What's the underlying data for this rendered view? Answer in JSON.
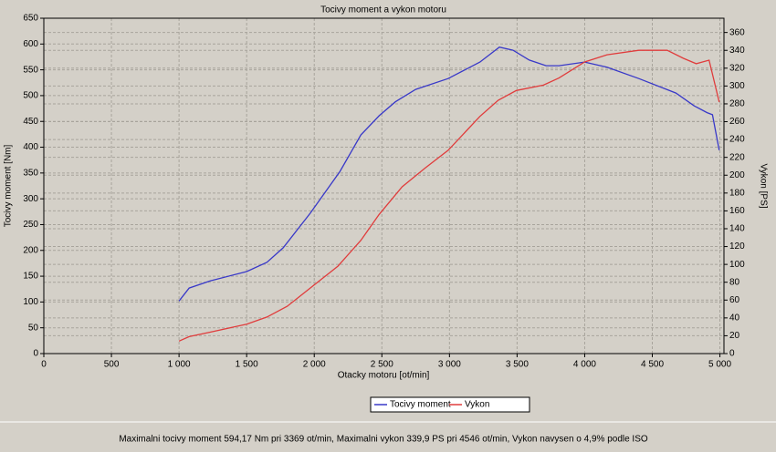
{
  "chart_data": {
    "type": "line",
    "title": "Tocivy moment a vykon motoru",
    "x_label": "Otacky motoru [ot/min]",
    "y_label": "Tocivy moment [Nm]",
    "y2_label": "Vykon [PS]",
    "footer": "Maximalni tocivy moment 594,17 Nm pri 3369 ot/min,  Maximalni vykon 339,9 PS pri 4546 ot/min,  Vykon navysen o 4,9% podle ISO",
    "grid": true,
    "legend": "bottom",
    "xlim": [
      0,
      5030
    ],
    "xticks": [
      0,
      500,
      {
        "value": 1000,
        "label": "1 000"
      },
      {
        "value": 1500,
        "label": "1 500"
      },
      {
        "value": 2000,
        "label": "2 000"
      },
      {
        "value": 2500,
        "label": "2 500"
      },
      {
        "value": 3000,
        "label": "3 000"
      },
      {
        "value": 3500,
        "label": "3 500"
      },
      {
        "value": 4000,
        "label": "4 000"
      },
      {
        "value": 4500,
        "label": "4 500"
      },
      {
        "value": 5000,
        "label": "5 000"
      }
    ],
    "ylim": [
      0,
      650
    ],
    "yticks": [
      0,
      50,
      100,
      150,
      200,
      250,
      300,
      350,
      400,
      450,
      500,
      550,
      600,
      650
    ],
    "y2lim": [
      0,
      376
    ],
    "y2ticks": [
      0,
      20,
      40,
      60,
      80,
      100,
      120,
      140,
      160,
      180,
      200,
      220,
      240,
      260,
      280,
      300,
      320,
      340,
      360
    ],
    "series": [
      {
        "name": "Tocivy moment",
        "color": "#3838c8",
        "x": [
          1000,
          1075,
          1230,
          1500,
          1650,
          1770,
          1970,
          2190,
          2345,
          2480,
          2600,
          2750,
          2990,
          3225,
          3369,
          3470,
          3590,
          3715,
          3810,
          4000,
          4165,
          4400,
          4675,
          4810,
          4905,
          4945,
          4995
        ],
        "values": [
          102,
          127,
          141,
          159,
          177,
          205,
          272,
          353,
          424,
          461,
          488,
          512,
          533,
          565,
          594,
          588,
          569,
          558,
          558,
          565,
          555,
          533,
          505,
          480,
          467,
          463,
          394
        ]
      },
      {
        "name": "Vykon",
        "color": "#e03c3c",
        "axis": "y2",
        "x": [
          1000,
          1075,
          1230,
          1500,
          1650,
          1800,
          2000,
          2175,
          2345,
          2480,
          2650,
          2820,
          2990,
          3225,
          3360,
          3495,
          3695,
          3810,
          4000,
          4165,
          4400,
          4546,
          4610,
          4730,
          4825,
          4920,
          4995
        ],
        "values": [
          14,
          19,
          24,
          33,
          41,
          53,
          77,
          98,
          127,
          156,
          187,
          208,
          228,
          266,
          284,
          295,
          301,
          309,
          327,
          335,
          340,
          340,
          340,
          331,
          325,
          329,
          282
        ]
      }
    ]
  }
}
